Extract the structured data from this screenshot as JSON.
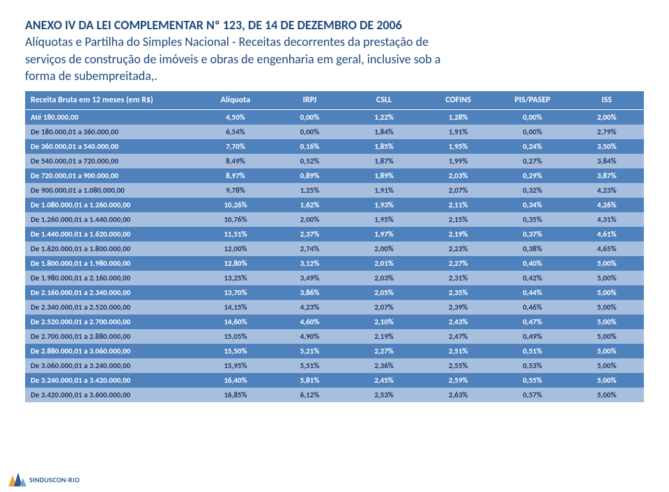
{
  "heading": {
    "title": "ANEXO IV DA LEI COMPLEMENTAR Nº 123, DE 14 DE DEZEMBRO DE 2006",
    "subtitle1": "Alíquotas e Partilha do Simples Nacional - Receitas decorrentes da prestação de",
    "subtitle2": "serviços de construção de imóveis e obras de engenharia em geral, inclusive sob a",
    "subtitle3": "forma de subempreitada,."
  },
  "table": {
    "header": [
      "Receita Bruta em 12 meses (em R$)",
      "Alíquota",
      "IRPJ",
      "CSLL",
      "COFINS",
      "PIS/PASEP",
      "ISS"
    ],
    "rows": [
      {
        "range": "Até 180.000,00",
        "values": [
          "4,50%",
          "0,00%",
          "1,22%",
          "1,28%",
          "0,00%",
          "2,00%"
        ]
      },
      {
        "range": "De 180.000,01 a 360.000,00",
        "values": [
          "6,54%",
          "0,00%",
          "1,84%",
          "1,91%",
          "0,00%",
          "2,79%"
        ]
      },
      {
        "range": "De 360.000,01 a 540.000,00",
        "values": [
          "7,70%",
          "0,16%",
          "1,85%",
          "1,95%",
          "0,24%",
          "3,50%"
        ]
      },
      {
        "range": "De 540.000,01 a 720.000,00",
        "values": [
          "8,49%",
          "0,52%",
          "1,87%",
          "1,99%",
          "0,27%",
          "3,84%"
        ]
      },
      {
        "range": "De 720.000,01 a 900.000,00",
        "values": [
          "8,97%",
          "0,89%",
          "1,89%",
          "2,03%",
          "0,29%",
          "3,87%"
        ]
      },
      {
        "range": "De 900.000,01 a 1.080.000,00",
        "values": [
          "9,78%",
          "1,25%",
          "1,91%",
          "2,07%",
          "0,32%",
          "4,23%"
        ]
      },
      {
        "range": "De 1.080.000,01 a 1.260.000,00",
        "values": [
          "10,26%",
          "1,62%",
          "1,93%",
          "2,11%",
          "0,34%",
          "4,26%"
        ]
      },
      {
        "range": "De 1.260.000,01 a 1.440.000,00",
        "values": [
          "10,76%",
          "2,00%",
          "1,95%",
          "2,15%",
          "0,35%",
          "4,31%"
        ]
      },
      {
        "range": "De 1.440.000,01 a 1.620.000,00",
        "values": [
          "11,51%",
          "2,37%",
          "1,97%",
          "2,19%",
          "0,37%",
          "4,61%"
        ]
      },
      {
        "range": "De 1.620.000,01 a 1.800.000,00",
        "values": [
          "12,00%",
          "2,74%",
          "2,00%",
          "2,23%",
          "0,38%",
          "4,65%"
        ]
      },
      {
        "range": "De 1.800.000,01 a 1.980.000,00",
        "values": [
          "12,80%",
          "3,12%",
          "2,01%",
          "2,27%",
          "0,40%",
          "5,00%"
        ]
      },
      {
        "range": "De 1.980.000,01 a 2.160.000,00",
        "values": [
          "13,25%",
          "3,49%",
          "2,03%",
          "2,31%",
          "0,42%",
          "5,00%"
        ]
      },
      {
        "range": "De 2.160.000,01 a 2.340.000,00",
        "values": [
          "13,70%",
          "3,86%",
          "2,05%",
          "2,35%",
          "0,44%",
          "5,00%"
        ]
      },
      {
        "range": "De 2.340.000,01 a 2.520.000,00",
        "values": [
          "14,15%",
          "4,23%",
          "2,07%",
          "2,39%",
          "0,46%",
          "5,00%"
        ]
      },
      {
        "range": "De 2.520.000,01 a 2.700.000,00",
        "values": [
          "14,60%",
          "4,60%",
          "2,10%",
          "2,43%",
          "0,47%",
          "5,00%"
        ]
      },
      {
        "range": "De 2.700.000,01 a 2.880.000,00",
        "values": [
          "15,05%",
          "4,90%",
          "2,19%",
          "2,47%",
          "0,49%",
          "5,00%"
        ]
      },
      {
        "range": "De 2.880.000,01 a 3.060.000,00",
        "values": [
          "15,50%",
          "5,21%",
          "2,27%",
          "2,51%",
          "0,51%",
          "5,00%"
        ]
      },
      {
        "range": "De 3.060.000,01 a 3.240.000,00",
        "values": [
          "15,95%",
          "5,51%",
          "2,36%",
          "2,55%",
          "0,53%",
          "5,00%"
        ]
      },
      {
        "range": "De 3.240.000,01 a 3.420.000,00",
        "values": [
          "16,40%",
          "5,81%",
          "2,45%",
          "2,59%",
          "0,55%",
          "5,00%"
        ]
      },
      {
        "range": "De 3.420.000,01 a 3.600.000,00",
        "values": [
          "16,85%",
          "6,12%",
          "2,53%",
          "2,63%",
          "0,57%",
          "5,00%"
        ]
      }
    ],
    "row_colors": {
      "dark_bg": "#4f81bd",
      "light_bg": "#a7bfde"
    }
  },
  "logo_text": "SINDUSCON-RIO"
}
